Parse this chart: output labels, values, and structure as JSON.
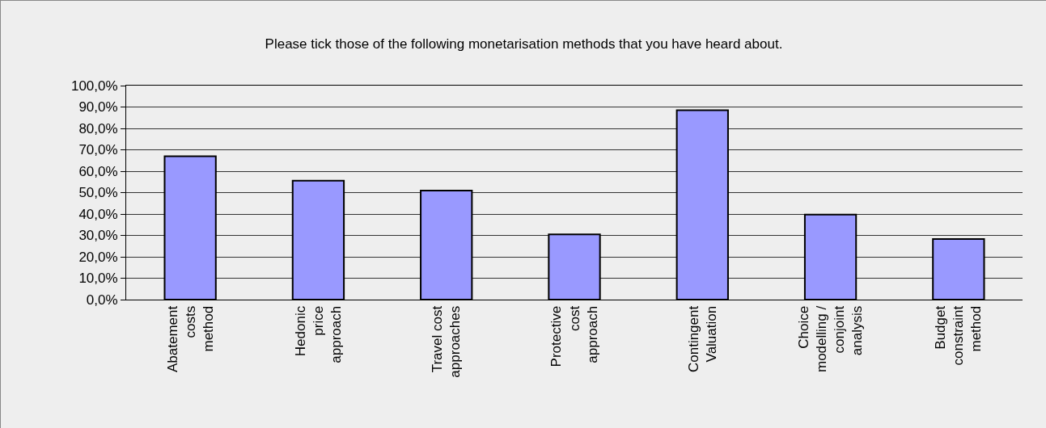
{
  "chart_data": {
    "type": "bar",
    "title": "Please tick those of the following monetarisation methods that you have heard about.",
    "categories": [
      "Abatement\ncosts\nmethod",
      "Hedonic\nprice\napproach",
      "Travel cost\napproaches",
      "Protective\ncost\napproach",
      "Contingent\nValuation",
      "Choice\nmodelling /\nconjoint\nanalysis",
      "Budget\nconstraint\nmethod"
    ],
    "values": [
      67.0,
      55.6,
      50.9,
      30.5,
      88.5,
      39.7,
      28.3
    ],
    "color": "#9999ff",
    "ylim": [
      0,
      100
    ],
    "yticks": [
      {
        "value": 0,
        "label": "0,0%"
      },
      {
        "value": 10,
        "label": "10,0%"
      },
      {
        "value": 20,
        "label": "20,0%"
      },
      {
        "value": 30,
        "label": "30,0%"
      },
      {
        "value": 40,
        "label": "40,0%"
      },
      {
        "value": 50,
        "label": "50,0%"
      },
      {
        "value": 60,
        "label": "60,0%"
      },
      {
        "value": 70,
        "label": "70,0%"
      },
      {
        "value": 80,
        "label": "80,0%"
      },
      {
        "value": 90,
        "label": "90,0%"
      },
      {
        "value": 100,
        "label": "100,0%"
      }
    ],
    "grid": "y"
  }
}
